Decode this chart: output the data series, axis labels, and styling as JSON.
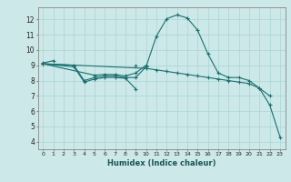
{
  "xlabel": "Humidex (Indice chaleur)",
  "background_color": "#cce8e8",
  "grid_color": "#aad4d4",
  "line_color": "#1a7070",
  "xlim": [
    -0.5,
    23.5
  ],
  "ylim": [
    3.5,
    12.8
  ],
  "xticks": [
    0,
    1,
    2,
    3,
    4,
    5,
    6,
    7,
    8,
    9,
    10,
    11,
    12,
    13,
    14,
    15,
    16,
    17,
    18,
    19,
    20,
    21,
    22,
    23
  ],
  "yticks": [
    4,
    5,
    6,
    7,
    8,
    9,
    10,
    11,
    12
  ],
  "series": [
    {
      "segments": [
        {
          "x": [
            0,
            1
          ],
          "y": [
            9.15,
            9.3
          ]
        },
        {
          "x": [
            9
          ],
          "y": [
            9.0
          ]
        }
      ]
    },
    {
      "comment": "dips down line: x=0,3,4,5,6,7,8,9",
      "segments": [
        {
          "x": [
            0,
            3,
            4,
            5,
            6,
            7,
            8,
            9
          ],
          "y": [
            9.1,
            8.9,
            7.9,
            8.1,
            8.2,
            8.2,
            8.15,
            7.45
          ]
        }
      ]
    },
    {
      "segments": [
        {
          "x": [
            0,
            3,
            4,
            5,
            6,
            7,
            8,
            9,
            10,
            11,
            12,
            13,
            14,
            15,
            16,
            17,
            18,
            19,
            20,
            21,
            22
          ],
          "y": [
            9.1,
            9.0,
            8.0,
            8.2,
            8.3,
            8.3,
            8.2,
            8.2,
            8.9,
            10.9,
            12.05,
            12.3,
            12.1,
            11.3,
            9.75,
            8.5,
            8.2,
            8.2,
            8.0,
            7.5,
            7.0
          ]
        }
      ]
    },
    {
      "comment": "flat line near y=8.3-9, x=0,5,6,7,8,9,10",
      "segments": [
        {
          "x": [
            0,
            5,
            6,
            7,
            8,
            9,
            10
          ],
          "y": [
            9.1,
            8.35,
            8.4,
            8.4,
            8.3,
            8.5,
            9.0
          ]
        }
      ]
    },
    {
      "segments": [
        {
          "x": [
            0,
            10,
            11,
            12,
            13,
            14,
            15,
            16,
            17,
            18,
            19,
            20,
            21,
            22,
            23
          ],
          "y": [
            9.1,
            8.8,
            8.7,
            8.6,
            8.5,
            8.4,
            8.3,
            8.2,
            8.1,
            8.0,
            7.9,
            7.8,
            7.5,
            6.4,
            4.3
          ]
        }
      ]
    }
  ]
}
